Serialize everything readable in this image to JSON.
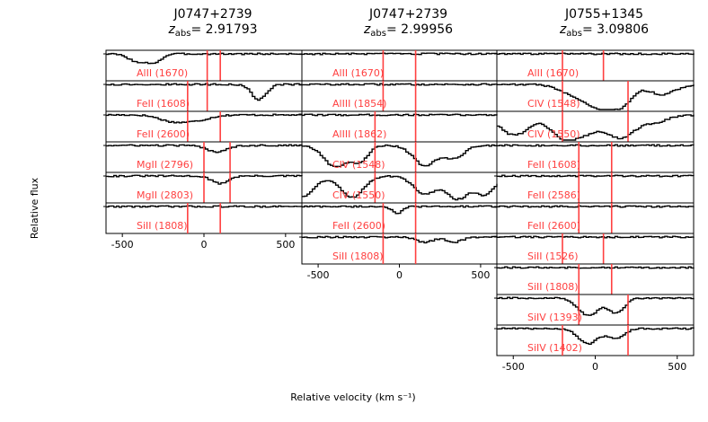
{
  "figure": {
    "xlabel": "Relative velocity (km s⁻¹)",
    "ylabel": "Relative flux"
  },
  "chart_data": [
    {
      "type": "line",
      "title_line1": "J0747+2739",
      "title_z_label": "z",
      "title_z_sub": "abs",
      "title_z_value": "= 2.91793",
      "xlim": [
        -600,
        600
      ],
      "xticks": [
        -500,
        0,
        500
      ],
      "xtick_labels": [
        "-500",
        "0",
        "500"
      ],
      "vlines_x": [
        0,
        100
      ],
      "line_color": "#000000",
      "label_color": "#ff4040",
      "vline_color": "#ff4040",
      "panels": [
        {
          "label": "AlII (1670)",
          "vlines": [
            20,
            100
          ],
          "absorption": [
            [
              -400,
              60,
              0.35
            ],
            [
              -300,
              40,
              0.25
            ]
          ]
        },
        {
          "label": "FeII (1608)",
          "vlines": [
            -100,
            20
          ],
          "absorption": [
            [
              330,
              45,
              0.6
            ]
          ]
        },
        {
          "label": "FeII (2600)",
          "vlines": [
            -100,
            100
          ],
          "absorption": [
            [
              -200,
              80,
              0.25
            ],
            [
              -50,
              80,
              0.2
            ]
          ]
        },
        {
          "label": "MgII (2796)",
          "vlines": [
            0,
            160
          ],
          "absorption": [
            [
              70,
              60,
              0.25
            ]
          ]
        },
        {
          "label": "MgII (2803)",
          "vlines": [
            0,
            160
          ],
          "absorption": [
            [
              90,
              50,
              0.3
            ]
          ]
        },
        {
          "label": "SiII (1808)",
          "vlines": [
            -100,
            100
          ],
          "absorption": []
        }
      ]
    },
    {
      "type": "line",
      "title_line1": "J0747+2739",
      "title_z_label": "z",
      "title_z_sub": "abs",
      "title_z_value": "= 2.99956",
      "xlim": [
        -600,
        600
      ],
      "xticks": [
        -500,
        0,
        500
      ],
      "xtick_labels": [
        "-500",
        "0",
        "500"
      ],
      "vlines_x": [
        -100,
        100
      ],
      "line_color": "#000000",
      "label_color": "#ff4040",
      "vline_color": "#ff4040",
      "panels": [
        {
          "label": "AlII (1670)",
          "vlines": [
            -100,
            100
          ],
          "absorption": []
        },
        {
          "label": "AlIII (1854)",
          "vlines": [
            -100,
            100
          ],
          "absorption": []
        },
        {
          "label": "AlIII (1862)",
          "vlines": [
            -150,
            100
          ],
          "absorption": []
        },
        {
          "label": "CIV (1548)",
          "vlines": [
            -150,
            100
          ],
          "absorption": [
            [
              -400,
              70,
              0.85
            ],
            [
              -250,
              50,
              0.6
            ],
            [
              150,
              70,
              0.8
            ],
            [
              330,
              60,
              0.5
            ]
          ]
        },
        {
          "label": "CIV (1550)",
          "vlines": [
            -150,
            100
          ],
          "absorption": [
            [
              -600,
              70,
              0.8
            ],
            [
              -300,
              70,
              0.85
            ],
            [
              150,
              70,
              0.7
            ],
            [
              350,
              70,
              0.9
            ],
            [
              520,
              60,
              0.7
            ]
          ]
        },
        {
          "label": "FeII (2600)",
          "vlines": [
            -100,
            100
          ],
          "absorption": [
            [
              -20,
              30,
              0.3
            ]
          ]
        },
        {
          "label": "SiII (1808)",
          "vlines": [
            -100,
            100
          ],
          "absorption": [
            [
              150,
              50,
              0.2
            ],
            [
              330,
              50,
              0.2
            ]
          ]
        }
      ]
    },
    {
      "type": "line",
      "title_line1": "J0755+1345",
      "title_z_label": "z",
      "title_z_sub": "abs",
      "title_z_value": "= 3.09806",
      "xlim": [
        -600,
        600
      ],
      "xticks": [
        -500,
        0,
        500
      ],
      "xtick_labels": [
        "-500",
        "0",
        "500"
      ],
      "vlines_x": [
        -100,
        100
      ],
      "line_color": "#000000",
      "label_color": "#ff4040",
      "vline_color": "#ff4040",
      "panels": [
        {
          "label": "AlII (1670)",
          "vlines": [
            -200,
            50
          ],
          "absorption": []
        },
        {
          "label": "CIV (1548)",
          "vlines": [
            -200,
            200
          ],
          "absorption": [
            [
              -100,
              100,
              0.5
            ],
            [
              50,
              80,
              0.8
            ],
            [
              170,
              60,
              0.6
            ],
            [
              400,
              80,
              0.4
            ]
          ]
        },
        {
          "label": "CIV (1550)",
          "vlines": [
            -200,
            200
          ],
          "absorption": [
            [
              -500,
              90,
              0.8
            ],
            [
              -200,
              80,
              0.9
            ],
            [
              -50,
              80,
              0.6
            ],
            [
              150,
              80,
              0.9
            ],
            [
              350,
              80,
              0.3
            ]
          ]
        },
        {
          "label": "FeII (1608)",
          "vlines": [
            -100,
            100
          ],
          "absorption": []
        },
        {
          "label": "FeII (2586)",
          "vlines": [
            -100,
            100
          ],
          "absorption": []
        },
        {
          "label": "FeII (2600)",
          "vlines": [
            -100,
            100
          ],
          "absorption": []
        },
        {
          "label": "SiII (1526)",
          "vlines": [
            -200,
            50
          ],
          "absorption": []
        },
        {
          "label": "SiII (1808)",
          "vlines": [
            -100,
            100
          ],
          "absorption": []
        },
        {
          "label": "SiIV (1393)",
          "vlines": [
            -100,
            200
          ],
          "absorption": [
            [
              -50,
              60,
              0.7
            ],
            [
              120,
              50,
              0.6
            ]
          ]
        },
        {
          "label": "SiIV (1402)",
          "vlines": [
            -200,
            200
          ],
          "absorption": [
            [
              -50,
              60,
              0.6
            ],
            [
              120,
              50,
              0.4
            ]
          ]
        }
      ]
    }
  ]
}
